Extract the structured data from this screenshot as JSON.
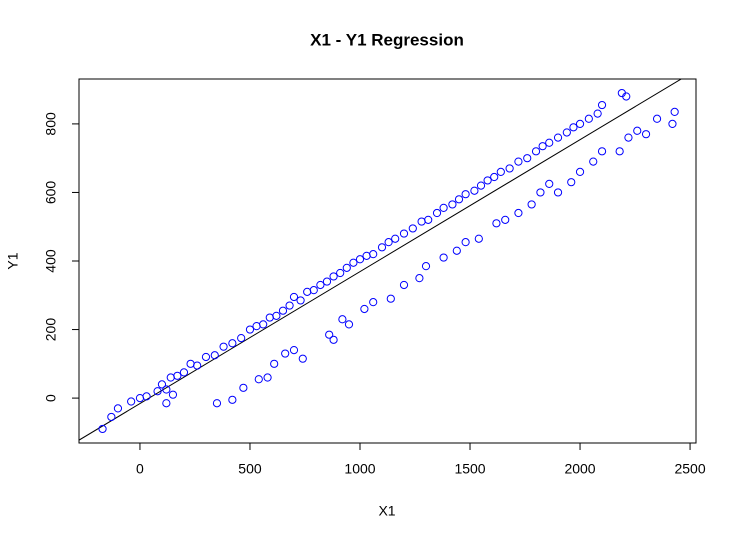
{
  "chart_data": {
    "type": "scatter",
    "title": "X1 - Y1 Regression",
    "x_label": "X1",
    "y_label": "Y1",
    "xlim": [
      -277,
      2527
    ],
    "ylim": [
      -131,
      931
    ],
    "xticks": [
      0,
      500,
      1000,
      1500,
      2000,
      2500
    ],
    "yticks": [
      0,
      200,
      400,
      600,
      800
    ],
    "color": "#0000ff",
    "regression_line": {
      "intercept": -16,
      "slope": 0.385,
      "color": "#000000"
    },
    "x": [
      -170,
      -130,
      -100,
      -40,
      0,
      30,
      80,
      100,
      120,
      140,
      170,
      200,
      230,
      260,
      300,
      340,
      380,
      420,
      460,
      500,
      530,
      560,
      590,
      620,
      650,
      680,
      700,
      730,
      760,
      790,
      820,
      850,
      880,
      910,
      940,
      970,
      1000,
      1030,
      1060,
      1100,
      1130,
      1160,
      1200,
      1240,
      1280,
      1310,
      1350,
      1380,
      1420,
      1450,
      1480,
      1520,
      1550,
      1580,
      1610,
      1640,
      1680,
      1720,
      1760,
      1800,
      1830,
      1860,
      1900,
      1940,
      1970,
      2000,
      2040,
      2080,
      2100,
      2190,
      2210,
      120,
      150,
      350,
      420,
      470,
      540,
      580,
      610,
      660,
      700,
      740,
      860,
      880,
      920,
      950,
      1020,
      1060,
      1140,
      1200,
      1270,
      1300,
      1380,
      1440,
      1480,
      1540,
      1620,
      1660,
      1720,
      1780,
      1820,
      1860,
      1900,
      1960,
      2000,
      2060,
      2100,
      2180,
      2220,
      2260,
      2300,
      2350,
      2420,
      2430
    ],
    "y": [
      -90,
      -55,
      -30,
      -10,
      0,
      5,
      20,
      40,
      25,
      60,
      65,
      75,
      100,
      95,
      120,
      125,
      150,
      160,
      175,
      200,
      210,
      215,
      235,
      240,
      255,
      270,
      295,
      285,
      310,
      315,
      330,
      340,
      355,
      365,
      380,
      395,
      405,
      415,
      420,
      440,
      455,
      465,
      480,
      495,
      515,
      520,
      540,
      555,
      565,
      580,
      595,
      605,
      620,
      635,
      645,
      660,
      670,
      690,
      700,
      720,
      735,
      745,
      760,
      775,
      790,
      800,
      815,
      830,
      855,
      890,
      880,
      -15,
      10,
      -15,
      -5,
      30,
      55,
      60,
      100,
      130,
      140,
      115,
      185,
      170,
      230,
      215,
      260,
      280,
      290,
      330,
      350,
      385,
      410,
      430,
      455,
      465,
      510,
      520,
      540,
      565,
      600,
      625,
      600,
      630,
      660,
      690,
      720,
      720,
      760,
      780,
      770,
      815,
      800,
      835
    ]
  }
}
